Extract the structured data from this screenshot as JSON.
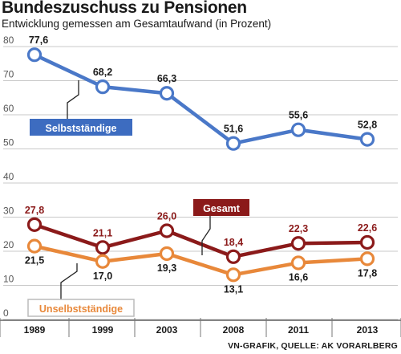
{
  "title": "Bundeszuschuss zu Pensionen",
  "subtitle": "Entwicklung gemessen am Gesamtaufwand (in Prozent)",
  "source": "VN-GRAFIK, QUELLE: AK VORARLBERG",
  "chart_data": {
    "type": "line",
    "x": [
      "1989",
      "1999",
      "2003",
      "2008",
      "2011",
      "2013"
    ],
    "ylim": [
      0,
      80
    ],
    "yticks": [
      0,
      10,
      20,
      30,
      40,
      50,
      60,
      70,
      80
    ],
    "grid": true,
    "series": [
      {
        "name": "Selbstständige",
        "values": [
          77.6,
          68.2,
          66.3,
          51.6,
          55.6,
          52.8
        ],
        "labels": [
          "77,6",
          "68,2",
          "66,3",
          "51,6",
          "55,6",
          "52,8"
        ],
        "color": "#4a78c8",
        "label_bg": "#3d6cc0"
      },
      {
        "name": "Gesamt",
        "values": [
          27.8,
          21.1,
          26.0,
          18.4,
          22.3,
          22.6
        ],
        "labels": [
          "27,8",
          "21,1",
          "26,0",
          "18,4",
          "22,3",
          "22,6"
        ],
        "color": "#8b1a1a",
        "label_bg": "#8b1a1a"
      },
      {
        "name": "Unselbstständige",
        "values": [
          21.5,
          17.0,
          19.3,
          13.1,
          16.6,
          17.8
        ],
        "labels": [
          "21,5",
          "17,0",
          "19,3",
          "13,1",
          "16,6",
          "17,8"
        ],
        "color": "#e8883a",
        "label_bg": "#ffffff"
      }
    ]
  }
}
